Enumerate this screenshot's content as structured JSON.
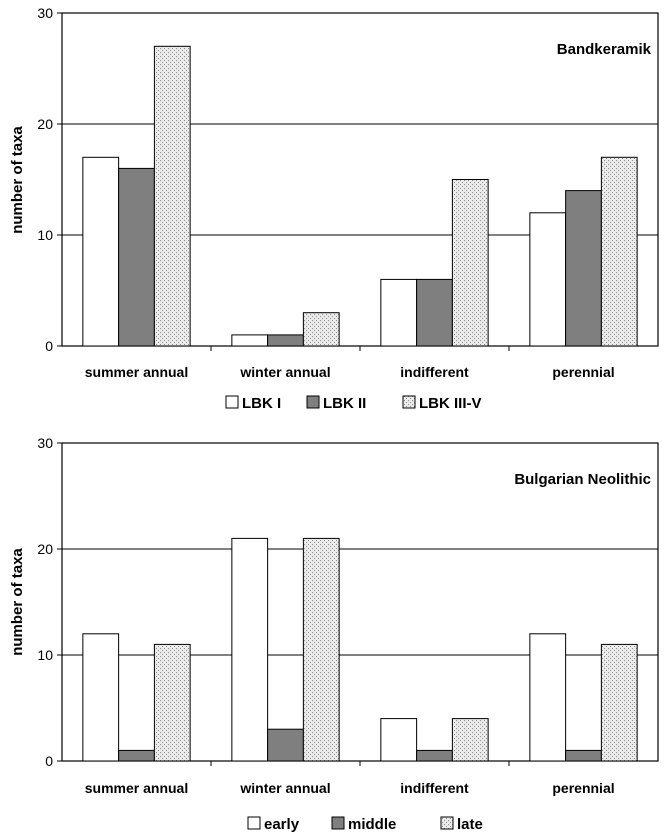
{
  "chart_data": [
    {
      "type": "bar",
      "title": "Bandkeramik",
      "ylabel": "number of taxa",
      "xlabel": "",
      "ylim": [
        0,
        30
      ],
      "yticks": [
        0,
        10,
        20,
        30
      ],
      "grid": true,
      "legend_position": "bottom",
      "categories": [
        "summer annual",
        "winter annual",
        "indifferent",
        "perennial"
      ],
      "series": [
        {
          "name": "LBK I",
          "values": [
            17,
            1,
            6,
            12
          ],
          "fill": "white"
        },
        {
          "name": "LBK II",
          "values": [
            16,
            1,
            6,
            14
          ],
          "fill": "grey"
        },
        {
          "name": "LBK III-V",
          "values": [
            27,
            3,
            15,
            17
          ],
          "fill": "dotted"
        }
      ]
    },
    {
      "type": "bar",
      "title": "Bulgarian Neolithic",
      "ylabel": "number of taxa",
      "xlabel": "",
      "ylim": [
        0,
        30
      ],
      "yticks": [
        0,
        10,
        20,
        30
      ],
      "grid": true,
      "legend_position": "bottom",
      "categories": [
        "summer annual",
        "winter annual",
        "indifferent",
        "perennial"
      ],
      "series": [
        {
          "name": "early",
          "values": [
            12,
            21,
            4,
            12
          ],
          "fill": "white"
        },
        {
          "name": "middle",
          "values": [
            1,
            3,
            1,
            1
          ],
          "fill": "grey"
        },
        {
          "name": "late",
          "values": [
            11,
            21,
            4,
            11
          ],
          "fill": "dotted"
        }
      ]
    }
  ],
  "colors": {
    "bar_white": "#ffffff",
    "bar_grey": "#7f7f7f",
    "dot_background": "#ebebeb",
    "dot_color": "#8a8a8a",
    "stroke": "#000000"
  }
}
